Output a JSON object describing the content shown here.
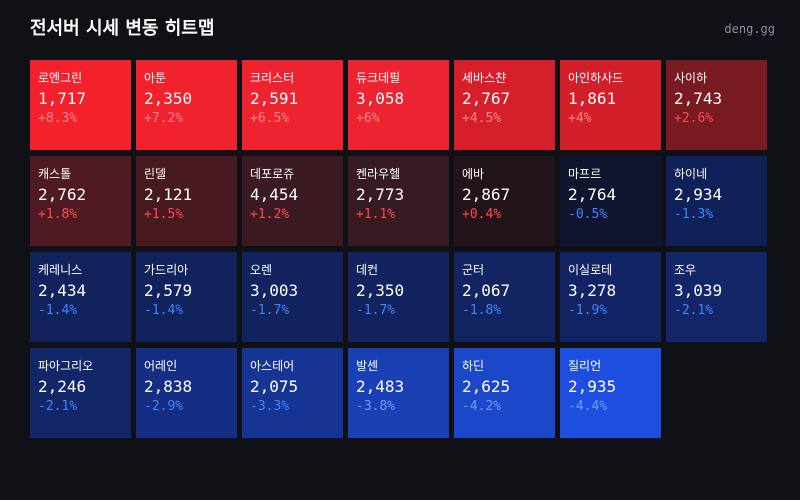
{
  "header": {
    "title": "전서버 시세 변동 히트맵",
    "site": "deng.gg"
  },
  "tiles": [
    {
      "name": "로엔그린",
      "price": "1,717",
      "change": "+8.3%",
      "color": "#f3212c"
    },
    {
      "name": "아툰",
      "price": "2,350",
      "change": "+7.2%",
      "color": "#f0222e"
    },
    {
      "name": "크리스터",
      "price": "2,591",
      "change": "+6.5%",
      "color": "#ee2330"
    },
    {
      "name": "듀크데필",
      "price": "3,058",
      "change": "+6%",
      "color": "#ec2330"
    },
    {
      "name": "세바스챤",
      "price": "2,767",
      "change": "+4.5%",
      "color": "#d61f2a"
    },
    {
      "name": "아인하사드",
      "price": "1,861",
      "change": "+4%",
      "color": "#d21f2a"
    },
    {
      "name": "사이하",
      "price": "2,743",
      "change": "+2.6%",
      "color": "#7a1a22"
    },
    {
      "name": "캐스톨",
      "price": "2,762",
      "change": "+1.8%",
      "color": "#4f1a22"
    },
    {
      "name": "린델",
      "price": "2,121",
      "change": "+1.5%",
      "color": "#471a22"
    },
    {
      "name": "데포로쥬",
      "price": "4,454",
      "change": "+1.2%",
      "color": "#3c1a22"
    },
    {
      "name": "켄라우헬",
      "price": "2,773",
      "change": "+1.1%",
      "color": "#381a22"
    },
    {
      "name": "에바",
      "price": "2,867",
      "change": "+0.4%",
      "color": "#221419"
    },
    {
      "name": "마프르",
      "price": "2,764",
      "change": "-0.5%",
      "color": "#111530"
    },
    {
      "name": "하이네",
      "price": "2,934",
      "change": "-1.3%",
      "color": "#102058"
    },
    {
      "name": "케레니스",
      "price": "2,434",
      "change": "-1.4%",
      "color": "#11225d"
    },
    {
      "name": "가드리아",
      "price": "2,579",
      "change": "-1.4%",
      "color": "#11225d"
    },
    {
      "name": "오렌",
      "price": "3,003",
      "change": "-1.7%",
      "color": "#122360"
    },
    {
      "name": "데컨",
      "price": "2,350",
      "change": "-1.7%",
      "color": "#122360"
    },
    {
      "name": "군터",
      "price": "2,067",
      "change": "-1.8%",
      "color": "#122462"
    },
    {
      "name": "이실로테",
      "price": "3,278",
      "change": "-1.9%",
      "color": "#122464"
    },
    {
      "name": "조우",
      "price": "3,039",
      "change": "-2.1%",
      "color": "#132668"
    },
    {
      "name": "파아그리오",
      "price": "2,246",
      "change": "-2.1%",
      "color": "#132668"
    },
    {
      "name": "어레인",
      "price": "2,838",
      "change": "-2.9%",
      "color": "#152e84"
    },
    {
      "name": "아스테어",
      "price": "2,075",
      "change": "-3.3%",
      "color": "#163494"
    },
    {
      "name": "발센",
      "price": "2,483",
      "change": "-3.8%",
      "color": "#1a40b6"
    },
    {
      "name": "하딘",
      "price": "2,625",
      "change": "-4.2%",
      "color": "#1b47c8"
    },
    {
      "name": "질리언",
      "price": "2,935",
      "change": "-4.4%",
      "color": "#1d4ee0"
    }
  ]
}
